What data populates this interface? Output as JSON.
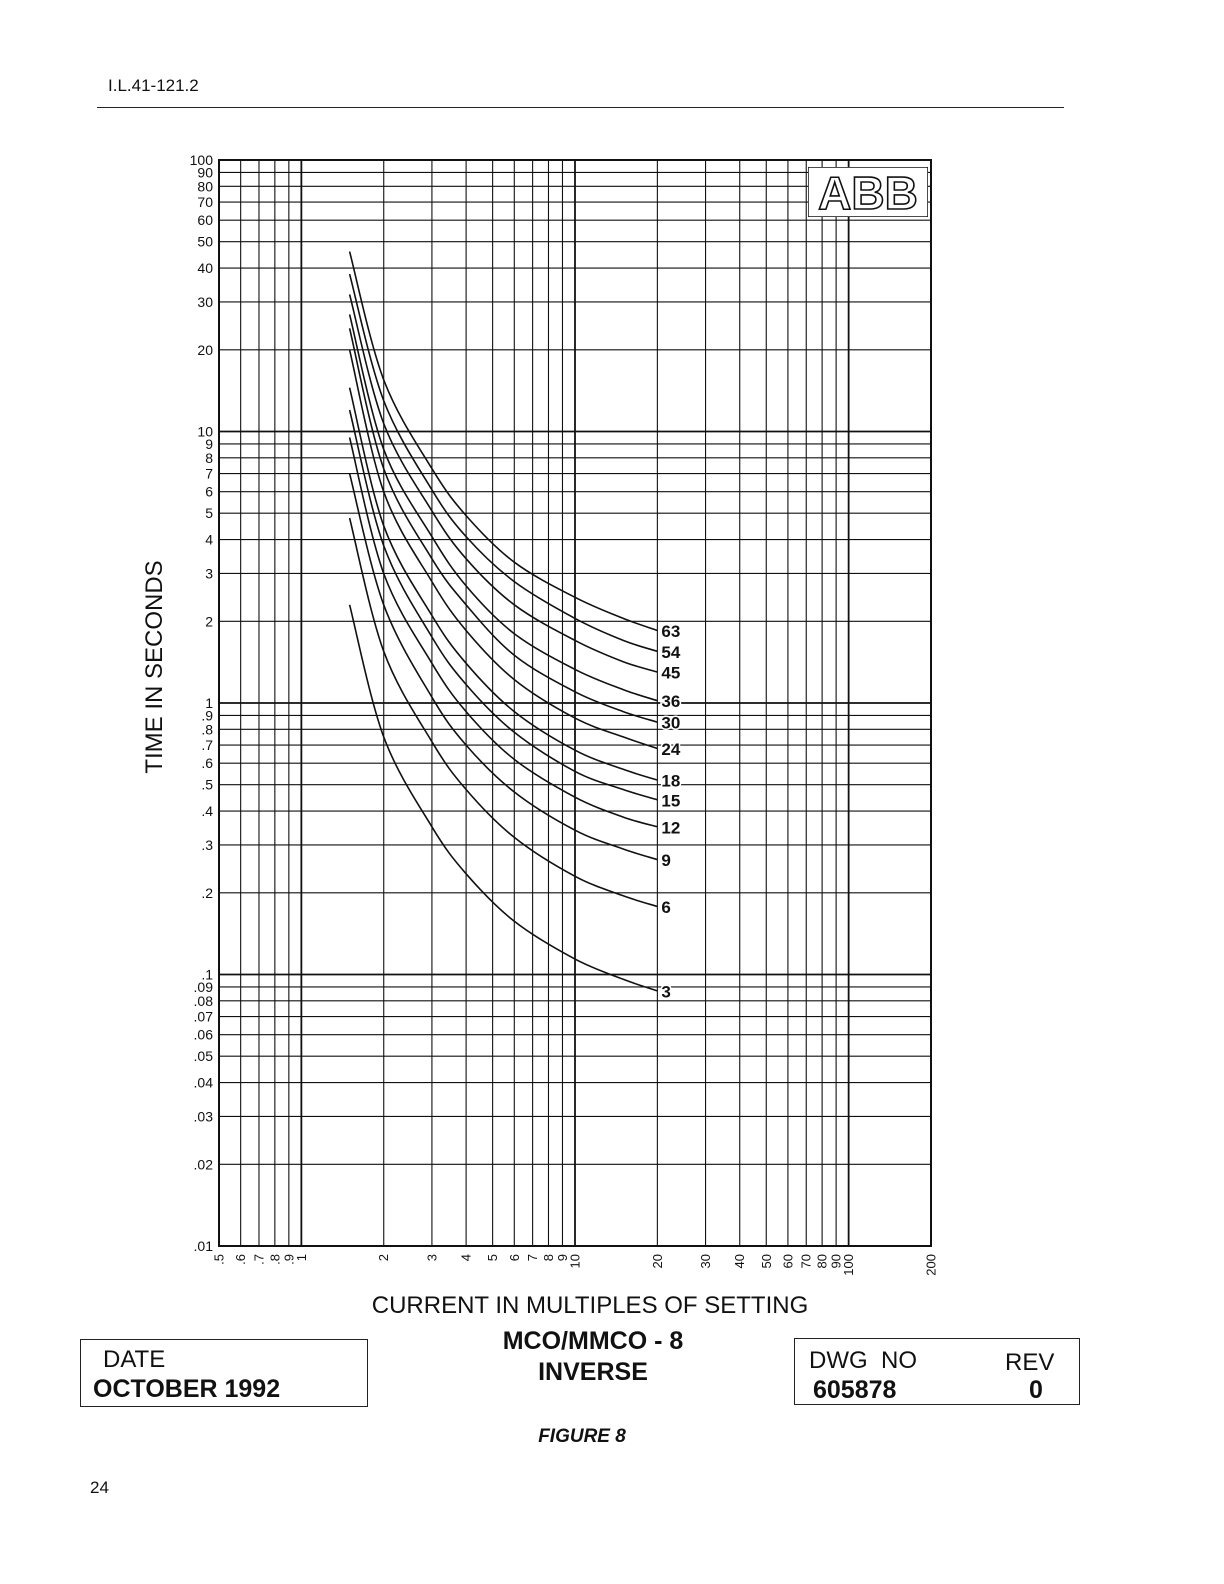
{
  "header": {
    "doc_id": "I.L.41-121.2"
  },
  "footer": {
    "page_number": "24"
  },
  "logo": {
    "text": "ABB"
  },
  "figure_caption": "FIGURE 8",
  "date_box": {
    "label": "DATE",
    "value": "OCTOBER 1992"
  },
  "dwg_box": {
    "label": "DWG  NO",
    "value": "605878",
    "rev_label": "REV",
    "rev_value": "0"
  },
  "chart_data": {
    "type": "line",
    "title": "MCO/MMCO - 8",
    "subtitle": "INVERSE",
    "xlabel": "CURRENT IN MULTIPLES OF SETTING",
    "ylabel": "TIME IN SECONDS",
    "x_scale": "log",
    "y_scale": "log",
    "xlim": [
      0.5,
      200
    ],
    "ylim": [
      0.01,
      100
    ],
    "grid": true,
    "x_ticks": [
      {
        "v": 0.5,
        "l": ".5"
      },
      {
        "v": 0.6,
        "l": ".6"
      },
      {
        "v": 0.7,
        "l": ".7"
      },
      {
        "v": 0.8,
        "l": ".8"
      },
      {
        "v": 0.9,
        "l": ".9"
      },
      {
        "v": 1,
        "l": "1"
      },
      {
        "v": 2,
        "l": "2"
      },
      {
        "v": 3,
        "l": "3"
      },
      {
        "v": 4,
        "l": "4"
      },
      {
        "v": 5,
        "l": "5"
      },
      {
        "v": 6,
        "l": "6"
      },
      {
        "v": 7,
        "l": "7"
      },
      {
        "v": 8,
        "l": "8"
      },
      {
        "v": 9,
        "l": "9"
      },
      {
        "v": 10,
        "l": "10"
      },
      {
        "v": 20,
        "l": "20"
      },
      {
        "v": 30,
        "l": "30"
      },
      {
        "v": 40,
        "l": "40"
      },
      {
        "v": 50,
        "l": "50"
      },
      {
        "v": 60,
        "l": "60"
      },
      {
        "v": 70,
        "l": "70"
      },
      {
        "v": 80,
        "l": "80"
      },
      {
        "v": 90,
        "l": "90"
      },
      {
        "v": 100,
        "l": "100"
      },
      {
        "v": 200,
        "l": "200"
      }
    ],
    "y_ticks": [
      {
        "v": 0.01,
        "l": ".01"
      },
      {
        "v": 0.02,
        "l": ".02"
      },
      {
        "v": 0.03,
        "l": ".03"
      },
      {
        "v": 0.04,
        "l": ".04"
      },
      {
        "v": 0.05,
        "l": ".05"
      },
      {
        "v": 0.06,
        "l": ".06"
      },
      {
        "v": 0.07,
        "l": ".07"
      },
      {
        "v": 0.08,
        "l": ".08"
      },
      {
        "v": 0.09,
        "l": ".09"
      },
      {
        "v": 0.1,
        "l": ".1"
      },
      {
        "v": 0.2,
        "l": ".2"
      },
      {
        "v": 0.3,
        "l": ".3"
      },
      {
        "v": 0.4,
        "l": ".4"
      },
      {
        "v": 0.5,
        "l": ".5"
      },
      {
        "v": 0.6,
        "l": ".6"
      },
      {
        "v": 0.7,
        "l": ".7"
      },
      {
        "v": 0.8,
        "l": ".8"
      },
      {
        "v": 0.9,
        "l": ".9"
      },
      {
        "v": 1,
        "l": "1"
      },
      {
        "v": 2,
        "l": "2"
      },
      {
        "v": 3,
        "l": "3"
      },
      {
        "v": 4,
        "l": "4"
      },
      {
        "v": 5,
        "l": "5"
      },
      {
        "v": 6,
        "l": "6"
      },
      {
        "v": 7,
        "l": "7"
      },
      {
        "v": 8,
        "l": "8"
      },
      {
        "v": 9,
        "l": "9"
      },
      {
        "v": 10,
        "l": "10"
      },
      {
        "v": 20,
        "l": "20"
      },
      {
        "v": 30,
        "l": "30"
      },
      {
        "v": 40,
        "l": "40"
      },
      {
        "v": 50,
        "l": "50"
      },
      {
        "v": 60,
        "l": "60"
      },
      {
        "v": 70,
        "l": "70"
      },
      {
        "v": 80,
        "l": "80"
      },
      {
        "v": 90,
        "l": "90"
      },
      {
        "v": 100,
        "l": "100"
      }
    ],
    "series": [
      {
        "name": "63",
        "x": [
          1.5,
          2,
          3,
          4,
          6,
          10,
          15,
          20
        ],
        "y": [
          46,
          15.5,
          7.3,
          4.9,
          3.3,
          2.45,
          2.05,
          1.85
        ]
      },
      {
        "name": "54",
        "x": [
          1.5,
          2,
          3,
          4,
          6,
          10,
          15,
          20
        ],
        "y": [
          38,
          13,
          6.1,
          4.1,
          2.8,
          2.05,
          1.7,
          1.55
        ]
      },
      {
        "name": "45",
        "x": [
          1.5,
          2,
          3,
          4,
          6,
          10,
          15,
          20
        ],
        "y": [
          32,
          10.7,
          5.1,
          3.4,
          2.3,
          1.7,
          1.42,
          1.3
        ]
      },
      {
        "name": "36",
        "x": [
          1.5,
          2,
          3,
          4,
          6,
          10,
          15,
          20
        ],
        "y": [
          27,
          8.6,
          4.1,
          2.7,
          1.8,
          1.33,
          1.12,
          1.02
        ]
      },
      {
        "name": "30",
        "x": [
          1.5,
          2,
          3,
          4,
          6,
          10,
          15,
          20
        ],
        "y": [
          24,
          7.3,
          3.4,
          2.3,
          1.5,
          1.1,
          0.93,
          0.85
        ]
      },
      {
        "name": "24",
        "x": [
          1.5,
          2,
          3,
          4,
          6,
          10,
          15,
          20
        ],
        "y": [
          20,
          6,
          2.8,
          1.85,
          1.22,
          0.88,
          0.75,
          0.68
        ]
      },
      {
        "name": "18",
        "x": [
          1.5,
          2,
          3,
          4,
          6,
          10,
          15,
          20
        ],
        "y": [
          14.5,
          4.5,
          2.1,
          1.4,
          0.93,
          0.67,
          0.57,
          0.52
        ]
      },
      {
        "name": "15",
        "x": [
          1.5,
          2,
          3,
          4,
          6,
          10,
          15,
          20
        ],
        "y": [
          12,
          3.8,
          1.75,
          1.17,
          0.78,
          0.56,
          0.48,
          0.44
        ]
      },
      {
        "name": "12",
        "x": [
          1.5,
          2,
          3,
          4,
          6,
          10,
          15,
          20
        ],
        "y": [
          9.5,
          3,
          1.4,
          0.93,
          0.62,
          0.45,
          0.38,
          0.35
        ]
      },
      {
        "name": "9",
        "x": [
          1.5,
          2,
          3,
          4,
          6,
          10,
          15,
          20
        ],
        "y": [
          7,
          2.3,
          1.05,
          0.7,
          0.47,
          0.34,
          0.29,
          0.265
        ]
      },
      {
        "name": "6",
        "x": [
          1.5,
          2,
          3,
          4,
          6,
          10,
          15,
          20
        ],
        "y": [
          4.8,
          1.55,
          0.72,
          0.48,
          0.32,
          0.23,
          0.195,
          0.178
        ]
      },
      {
        "name": "3",
        "x": [
          1.5,
          2,
          3,
          4,
          6,
          10,
          15,
          20
        ],
        "y": [
          2.3,
          0.75,
          0.35,
          0.235,
          0.157,
          0.114,
          0.096,
          0.087
        ]
      }
    ]
  }
}
